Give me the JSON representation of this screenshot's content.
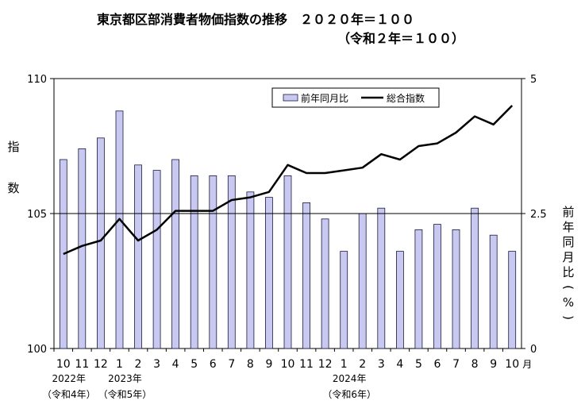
{
  "title_line1": "東京都区部消費者物価指数の推移　２０２０年＝１００",
  "title_line2": "（令和２年＝１００）",
  "chart_data": {
    "type": "bar+line",
    "categories": [
      "10",
      "11",
      "12",
      "1",
      "2",
      "3",
      "4",
      "5",
      "6",
      "7",
      "8",
      "9",
      "10",
      "11",
      "12",
      "1",
      "2",
      "3",
      "4",
      "5",
      "6",
      "7",
      "8",
      "9",
      "10"
    ],
    "month_suffix": "月",
    "year_labels": [
      {
        "at_index": 0,
        "line1": "2022年",
        "line2": "（令和4年）"
      },
      {
        "at_index": 3,
        "line1": "2023年",
        "line2": "（令和5年）"
      },
      {
        "at_index": 15,
        "line1": "2024年",
        "line2": "（令和6年）"
      }
    ],
    "series": [
      {
        "name": "前年同月比",
        "type": "bar",
        "axis": "right",
        "values": [
          3.5,
          3.7,
          3.9,
          4.4,
          3.4,
          3.3,
          3.5,
          3.2,
          3.2,
          3.2,
          2.9,
          2.8,
          3.2,
          2.7,
          2.4,
          1.8,
          2.5,
          2.6,
          1.8,
          2.2,
          2.3,
          2.2,
          2.6,
          2.1,
          1.8
        ]
      },
      {
        "name": "総合指数",
        "type": "line",
        "axis": "left",
        "values": [
          103.5,
          103.8,
          104.0,
          104.8,
          104.0,
          104.4,
          105.1,
          105.1,
          105.1,
          105.5,
          105.6,
          105.8,
          106.8,
          106.5,
          106.5,
          106.6,
          106.7,
          107.2,
          107.0,
          107.5,
          107.6,
          108.0,
          108.6,
          108.3,
          109.0
        ]
      }
    ],
    "left_axis": {
      "label": "指数",
      "ylim": [
        100,
        110
      ],
      "ticks": [
        100,
        105,
        110
      ],
      "tick_labels": [
        "100",
        "105",
        "110"
      ]
    },
    "right_axis": {
      "label": "前年同月比（%）",
      "ylim": [
        0,
        5
      ],
      "ticks": [
        0,
        2.5,
        5
      ],
      "tick_labels": [
        "0",
        "2.5",
        "5"
      ]
    },
    "reference_line": 105,
    "legend_position": "top-right",
    "colors": {
      "bar_fill": "#c8c8f0",
      "bar_stroke": "#1a1a40",
      "line": "#000000"
    }
  }
}
